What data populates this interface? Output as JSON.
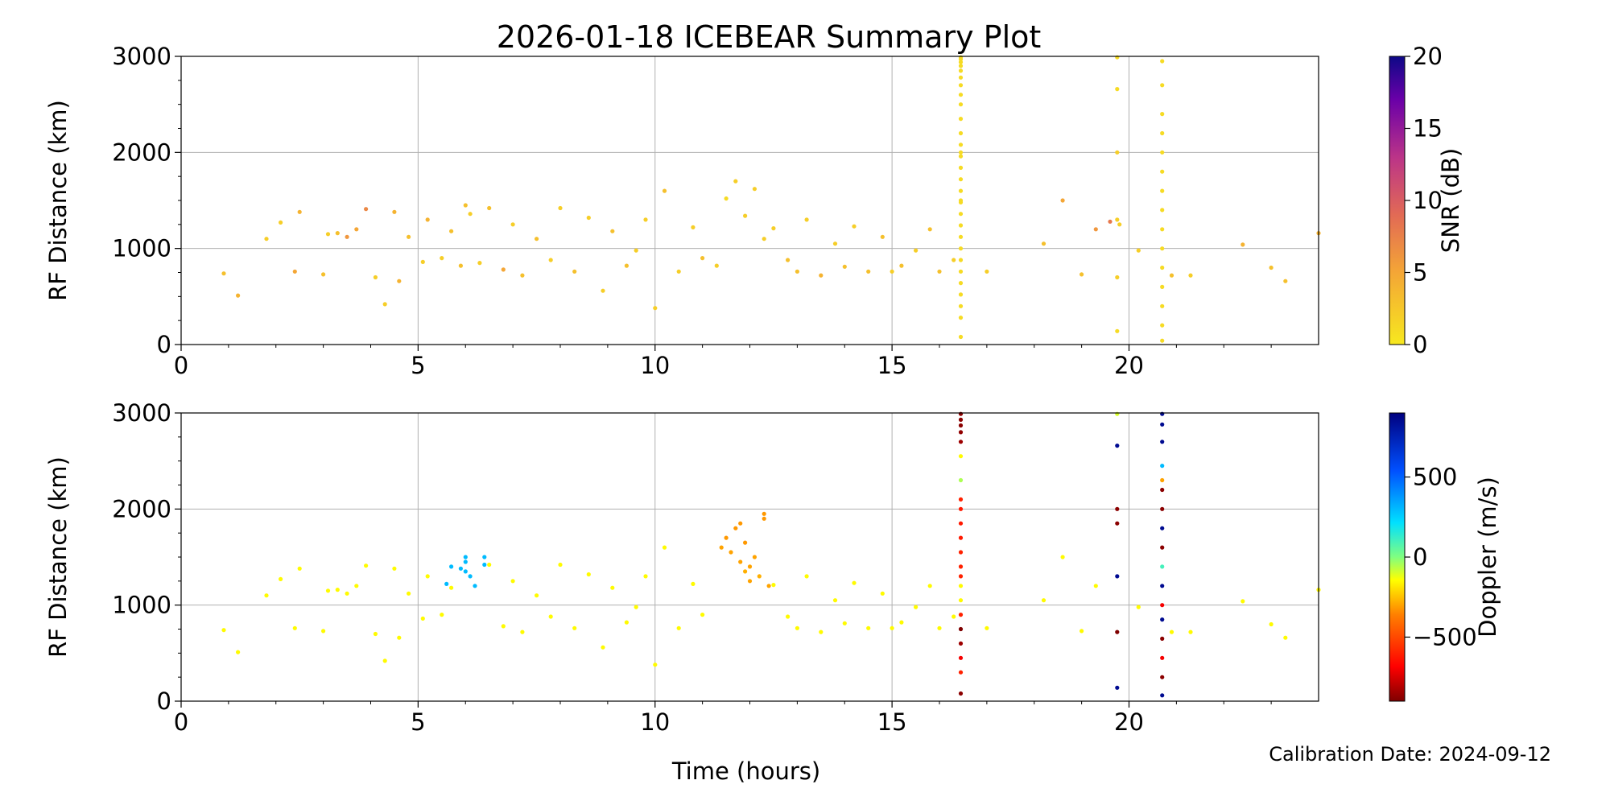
{
  "title": "2026-01-18 ICEBEAR Summary Plot",
  "footer": {
    "calibration": "Calibration Date: 2024-09-12"
  },
  "colors": {
    "snr_low": "#f7e81f",
    "snr_mid": "#f08a3a",
    "snr_high": "#1a1075",
    "doppler_pos": "#0000c8",
    "doppler_zero": "#6cff6c",
    "doppler_neg": "#7a0000",
    "grid": "#b0b0b0"
  },
  "chart_data": [
    {
      "type": "scatter",
      "panel": "top",
      "xlabel": "",
      "ylabel": "RF Distance (km)",
      "xlim": [
        0,
        24
      ],
      "ylim": [
        0,
        3000
      ],
      "xticks": [
        "0",
        "5",
        "10",
        "15",
        "20"
      ],
      "yticks": [
        "0",
        "1000",
        "2000",
        "3000"
      ],
      "grid": true,
      "colorbar": {
        "label": "SNR (dB)",
        "range": [
          0,
          20
        ],
        "ticks": [
          "0",
          "5",
          "10",
          "15",
          "20"
        ],
        "colormap": "plasma_r"
      },
      "series": [
        {
          "x": [
            0.9,
            1.2,
            1.8,
            2.1,
            2.4,
            2.5,
            3.0,
            3.1,
            3.3,
            3.5,
            3.7,
            3.9,
            4.1,
            4.3,
            4.5,
            4.6,
            4.8,
            5.1,
            5.2,
            5.5,
            5.7,
            5.9,
            6.0,
            6.1,
            6.3,
            6.5,
            6.8,
            7.0,
            7.2,
            7.5,
            7.8,
            8.0,
            8.3,
            8.6,
            8.9,
            9.1,
            9.4,
            9.6,
            9.8,
            10.0,
            10.2,
            10.5,
            10.8,
            11.0,
            11.3,
            11.5,
            11.7,
            11.9,
            12.1,
            12.3,
            12.5,
            12.8,
            13.0,
            13.2,
            13.5,
            13.8,
            14.0,
            14.2,
            14.5,
            14.8,
            15.0,
            15.2,
            15.5,
            15.8,
            16.0,
            16.3,
            17.0,
            18.2,
            18.6,
            19.0,
            19.3,
            19.6,
            19.8,
            20.2,
            20.9,
            21.3,
            22.4,
            23.0,
            23.3,
            24.0
          ],
          "y": [
            740,
            510,
            1100,
            1270,
            760,
            1380,
            730,
            1150,
            1160,
            1120,
            1200,
            1410,
            700,
            420,
            1380,
            660,
            1120,
            860,
            1300,
            900,
            1180,
            820,
            1450,
            1360,
            850,
            1420,
            780,
            1250,
            720,
            1100,
            880,
            1420,
            760,
            1320,
            560,
            1180,
            820,
            980,
            1300,
            380,
            1600,
            760,
            1220,
            900,
            820,
            1520,
            1700,
            1340,
            1620,
            1100,
            1210,
            880,
            760,
            1300,
            720,
            1050,
            810,
            1230,
            760,
            1120,
            760,
            820,
            980,
            1200,
            760,
            880,
            760,
            1050,
            1500,
            730,
            1200,
            1280,
            1250,
            980,
            720,
            720,
            1040,
            800,
            660,
            1160
          ],
          "snr": [
            3,
            4,
            2,
            2,
            5,
            4,
            3,
            2,
            3,
            6,
            5,
            7,
            2,
            2,
            4,
            4,
            3,
            2,
            4,
            2,
            3,
            3,
            3,
            2,
            2,
            3,
            5,
            2,
            3,
            3,
            2,
            2,
            3,
            2,
            2,
            3,
            3,
            2,
            2,
            2,
            3,
            2,
            2,
            3,
            2,
            1,
            2,
            2,
            2,
            2,
            2,
            3,
            3,
            2,
            4,
            2,
            3,
            2,
            3,
            3,
            2,
            3,
            2,
            3,
            3,
            2,
            2,
            3,
            5,
            3,
            6,
            8,
            2,
            2,
            3,
            2,
            4,
            3,
            3,
            4
          ]
        },
        {
          "x": [
            16.45,
            16.45,
            16.45,
            16.45,
            16.45,
            16.45,
            16.45,
            16.45,
            16.45,
            16.45,
            16.45,
            16.45,
            16.45,
            16.45,
            16.45,
            16.45,
            16.45,
            16.45,
            16.45,
            16.45,
            16.45,
            16.45,
            16.45,
            16.45,
            16.45,
            16.45,
            16.45,
            16.45,
            16.45,
            16.45
          ],
          "y": [
            80,
            280,
            400,
            520,
            640,
            760,
            880,
            1000,
            1120,
            1240,
            1360,
            1480,
            1600,
            1720,
            1840,
            1960,
            2080,
            2200,
            2350,
            2500,
            2600,
            2700,
            2780,
            2850,
            2900,
            2940,
            2970,
            2990,
            2000,
            1500
          ],
          "snr": [
            1,
            1,
            1,
            1,
            1,
            1,
            1,
            1,
            1,
            1,
            1,
            1,
            1,
            1,
            1,
            1,
            1,
            1,
            1,
            1,
            1,
            1,
            1,
            1,
            1,
            1,
            1,
            1,
            1,
            1
          ]
        },
        {
          "x": [
            19.75,
            19.75,
            19.75,
            19.75,
            19.75,
            19.75,
            20.7,
            20.7,
            20.7,
            20.7,
            20.7,
            20.7,
            20.7,
            20.7,
            20.7,
            20.7,
            20.7,
            20.7,
            20.7,
            20.7,
            20.7
          ],
          "y": [
            140,
            700,
            1300,
            2000,
            2660,
            2990,
            40,
            200,
            400,
            600,
            800,
            1000,
            1200,
            1400,
            1600,
            1800,
            2000,
            2200,
            2400,
            2700,
            2950
          ],
          "snr": [
            1,
            2,
            2,
            2,
            1,
            1,
            1,
            1,
            1,
            1,
            1,
            1,
            1,
            1,
            1,
            1,
            1,
            1,
            1,
            1,
            1
          ]
        }
      ]
    },
    {
      "type": "scatter",
      "panel": "bottom",
      "xlabel": "Time (hours)",
      "ylabel": "RF Distance (km)",
      "xlim": [
        0,
        24
      ],
      "ylim": [
        0,
        3000
      ],
      "xticks": [
        "0",
        "5",
        "10",
        "15",
        "20"
      ],
      "yticks": [
        "0",
        "1000",
        "2000",
        "3000"
      ],
      "grid": true,
      "colorbar": {
        "label": "Doppler (m/s)",
        "range": [
          -900,
          900
        ],
        "ticks": [
          "500",
          "0",
          "−500"
        ],
        "tick_values": [
          500,
          0,
          -500
        ],
        "colormap": "jet_r"
      },
      "series": [
        {
          "x": [
            0.9,
            1.2,
            1.8,
            2.1,
            2.4,
            2.5,
            3.0,
            3.1,
            3.3,
            3.5,
            3.7,
            3.9,
            4.1,
            4.3,
            4.5,
            4.6,
            4.8,
            5.1,
            5.2,
            5.5,
            5.7,
            6.5,
            6.8,
            7.0,
            7.2,
            7.5,
            7.8,
            8.0,
            8.3,
            8.6,
            8.9,
            9.1,
            9.4,
            9.6,
            9.8,
            10.0,
            10.2,
            10.5,
            10.8,
            11.0,
            12.5,
            12.8,
            13.0,
            13.2,
            13.5,
            13.8,
            14.0,
            14.2,
            14.5,
            14.8,
            15.0,
            15.2,
            15.5,
            15.8,
            16.0,
            16.3,
            17.0,
            18.2,
            18.6,
            19.0,
            19.3,
            20.2,
            20.9,
            21.3,
            22.4,
            23.0,
            23.3,
            24.0
          ],
          "y": [
            740,
            510,
            1100,
            1270,
            760,
            1380,
            730,
            1150,
            1160,
            1120,
            1200,
            1410,
            700,
            420,
            1380,
            660,
            1120,
            860,
            1300,
            900,
            1180,
            1420,
            780,
            1250,
            720,
            1100,
            880,
            1420,
            760,
            1320,
            560,
            1180,
            820,
            980,
            1300,
            380,
            1600,
            760,
            1220,
            900,
            1210,
            880,
            760,
            1300,
            720,
            1050,
            810,
            1230,
            760,
            1120,
            760,
            820,
            980,
            1200,
            760,
            880,
            760,
            1050,
            1500,
            730,
            1200,
            980,
            720,
            720,
            1040,
            800,
            660,
            1160
          ],
          "doppler": [
            -150,
            -150,
            -150,
            -150,
            -150,
            -150,
            -150,
            -150,
            -150,
            -150,
            -150,
            -150,
            -150,
            -150,
            -150,
            -150,
            -150,
            -150,
            -150,
            -150,
            -150,
            -150,
            -150,
            -150,
            -150,
            -150,
            -150,
            -150,
            -150,
            -150,
            -150,
            -150,
            -150,
            -150,
            -150,
            -150,
            -150,
            -150,
            -150,
            -150,
            -150,
            -150,
            -150,
            -150,
            -150,
            -150,
            -150,
            -150,
            -150,
            -150,
            -150,
            -150,
            -150,
            -150,
            -150,
            -150,
            -150,
            -150,
            -150,
            -150,
            -150,
            -150,
            -150,
            -150,
            -150,
            -150,
            -150,
            -150
          ]
        },
        {
          "x": [
            5.6,
            5.7,
            5.9,
            6.0,
            6.0,
            6.1,
            6.0,
            6.2,
            6.4,
            6.4
          ],
          "y": [
            1220,
            1400,
            1380,
            1450,
            1350,
            1300,
            1500,
            1200,
            1500,
            1420
          ],
          "doppler": [
            300,
            300,
            300,
            300,
            300,
            300,
            300,
            300,
            300,
            300
          ]
        },
        {
          "x": [
            11.4,
            11.5,
            11.6,
            11.7,
            11.8,
            11.9,
            11.9,
            12.0,
            12.1,
            12.2,
            12.3,
            12.4,
            11.8,
            12.0,
            12.3
          ],
          "y": [
            1600,
            1700,
            1550,
            1800,
            1450,
            1350,
            1650,
            1250,
            1500,
            1300,
            1900,
            1200,
            1850,
            1400,
            1950
          ],
          "doppler": [
            -300,
            -320,
            -300,
            -320,
            -300,
            -280,
            -320,
            -300,
            -300,
            -280,
            -320,
            -300,
            -320,
            -300,
            -320
          ]
        },
        {
          "x": [
            16.45,
            16.45,
            16.45,
            16.45,
            16.45,
            16.45,
            16.45,
            16.45,
            16.45,
            16.45,
            16.45,
            16.45,
            16.45,
            16.45,
            16.45,
            16.45,
            16.45,
            16.45,
            16.45,
            16.45,
            16.45,
            16.45
          ],
          "y": [
            80,
            300,
            450,
            600,
            750,
            900,
            1050,
            1200,
            1300,
            1400,
            1550,
            1700,
            1850,
            2000,
            2100,
            2300,
            2550,
            2700,
            2800,
            2870,
            2930,
            2990
          ],
          "doppler": [
            -880,
            -600,
            -700,
            -850,
            -900,
            -600,
            -150,
            -150,
            -600,
            -600,
            -600,
            -620,
            -620,
            -620,
            -600,
            -50,
            -150,
            -850,
            -870,
            -880,
            -880,
            -880
          ]
        },
        {
          "x": [
            19.75,
            19.75,
            19.75,
            19.75,
            19.75,
            19.75,
            19.75,
            20.7,
            20.7,
            20.7,
            20.7,
            20.7,
            20.7,
            20.7,
            20.7,
            20.7,
            20.7,
            20.7,
            20.7,
            20.7,
            20.7,
            20.7,
            20.7,
            20.7
          ],
          "y": [
            140,
            720,
            1300,
            1850,
            2000,
            2660,
            2990,
            60,
            250,
            450,
            650,
            850,
            1000,
            1200,
            1400,
            1600,
            1800,
            2000,
            2200,
            2300,
            2450,
            2700,
            2880,
            2990
          ],
          "doppler": [
            850,
            -900,
            850,
            -880,
            -880,
            850,
            -100,
            850,
            -880,
            -700,
            -880,
            850,
            -700,
            850,
            100,
            -880,
            850,
            -880,
            -880,
            -300,
            300,
            850,
            850,
            850
          ]
        }
      ]
    }
  ]
}
